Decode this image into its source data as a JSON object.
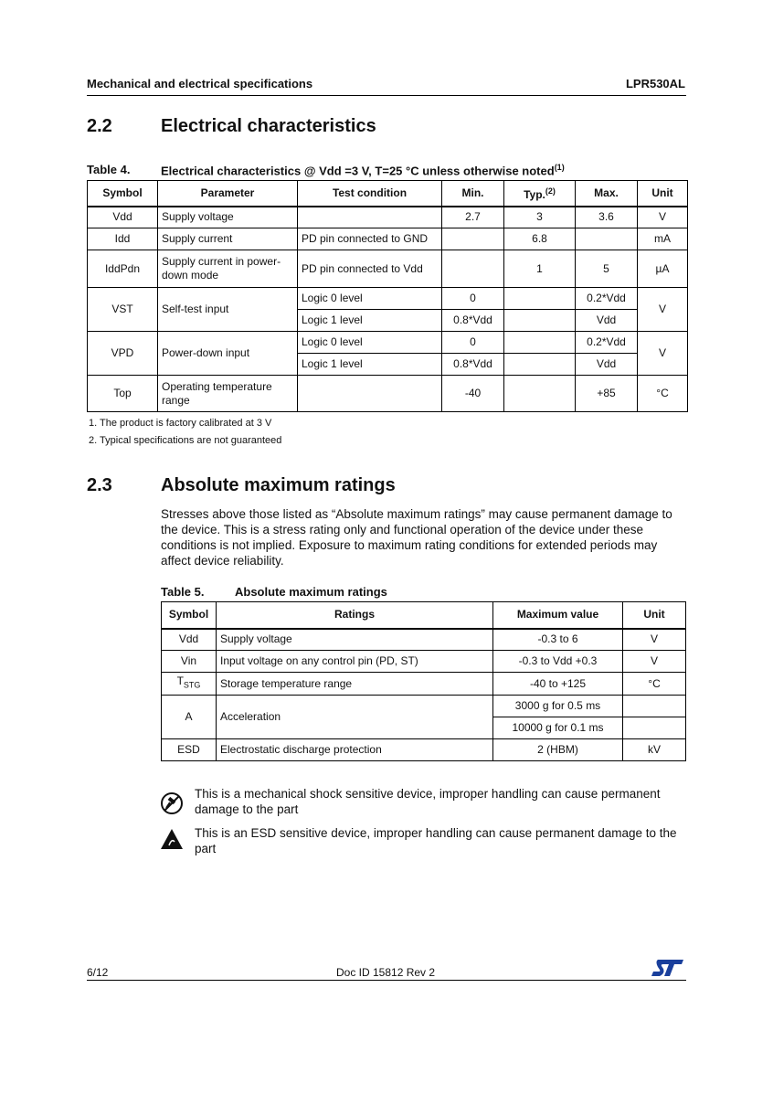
{
  "header": {
    "left": "Mechanical and electrical specifications",
    "right": "LPR530AL"
  },
  "section_2_2": {
    "number": "2.2",
    "title": "Electrical characteristics"
  },
  "table4": {
    "label": "Table 4.",
    "title": "Electrical characteristics @ Vdd =3 V, T=25 °C unless otherwise noted",
    "title_note": "(1)",
    "headers": {
      "symbol": "Symbol",
      "parameter": "Parameter",
      "test": "Test condition",
      "min": "Min.",
      "typ": "Typ.",
      "typ_note": "(2)",
      "max": "Max.",
      "unit": "Unit"
    },
    "rows": [
      {
        "symbol": "Vdd",
        "parameter": "Supply voltage",
        "test": "",
        "min": "2.7",
        "typ": "3",
        "max": "3.6",
        "unit": "V"
      },
      {
        "symbol": "Idd",
        "parameter": "Supply current",
        "test": "PD pin connected to GND",
        "min": "",
        "typ": "6.8",
        "max": "",
        "unit": "mA"
      },
      {
        "symbol": "IddPdn",
        "parameter": "Supply current in power-down mode",
        "test": "PD pin connected to Vdd",
        "min": "",
        "typ": "1",
        "max": "5",
        "unit": "µA"
      },
      {
        "symbol": "VST",
        "parameter": "Self-test input",
        "unit": "V",
        "sub": [
          {
            "test": "Logic 0 level",
            "min": "0",
            "typ": "",
            "max": "0.2*Vdd"
          },
          {
            "test": "Logic 1 level",
            "min": "0.8*Vdd",
            "typ": "",
            "max": "Vdd"
          }
        ]
      },
      {
        "symbol": "VPD",
        "parameter": "Power-down input",
        "unit": "V",
        "sub": [
          {
            "test": "Logic 0 level",
            "min": "0",
            "typ": "",
            "max": "0.2*Vdd"
          },
          {
            "test": "Logic 1 level",
            "min": "0.8*Vdd",
            "typ": "",
            "max": "Vdd"
          }
        ]
      },
      {
        "symbol": "Top",
        "parameter": "Operating temperature range",
        "test": "",
        "min": "-40",
        "typ": "",
        "max": "+85",
        "unit": "°C"
      }
    ],
    "footnotes": [
      "1.   The product is factory calibrated at 3 V",
      "2.   Typical specifications are not guaranteed"
    ]
  },
  "section_2_3": {
    "number": "2.3",
    "title": "Absolute maximum ratings",
    "paragraph": "Stresses above those listed as “Absolute maximum ratings” may cause permanent damage to the device. This is a stress rating only and functional operation of the device under these conditions is not implied. Exposure to maximum rating conditions for extended periods may affect device reliability."
  },
  "table5": {
    "label": "Table 5.",
    "title": "Absolute maximum ratings",
    "headers": {
      "symbol": "Symbol",
      "ratings": "Ratings",
      "max": "Maximum value",
      "unit": "Unit"
    },
    "rows": [
      {
        "symbol": "Vdd",
        "rating": "Supply voltage",
        "max": "-0.3 to 6",
        "unit": "V"
      },
      {
        "symbol": "Vin",
        "rating": "Input voltage on any control pin (PD, ST)",
        "max": "-0.3 to Vdd +0.3",
        "unit": "V"
      },
      {
        "symbol": "T",
        "symbol_sub": "STG",
        "rating": "Storage temperature range",
        "max": "-40 to +125",
        "unit": "°C"
      },
      {
        "symbol": "A",
        "rating": "Acceleration",
        "max": "3000 g for 0.5 ms",
        "max2": "10000 g for 0.1 ms",
        "unit": ""
      },
      {
        "symbol": "ESD",
        "rating": "Electrostatic discharge protection",
        "max": "2 (HBM)",
        "unit": "kV"
      }
    ]
  },
  "warnings": [
    {
      "icon": "mechanical-shock-icon",
      "text": "This is a mechanical shock sensitive device, improper handling can cause permanent damage to the part"
    },
    {
      "icon": "esd-warning-icon",
      "text": "This is an ESD sensitive device, improper handling can cause permanent damage to the part"
    }
  ],
  "footer": {
    "page": "6/12",
    "doc_id": "Doc ID 15812 Rev 2",
    "logo": "ST"
  },
  "colors": {
    "logo": "#1a3f9c"
  }
}
